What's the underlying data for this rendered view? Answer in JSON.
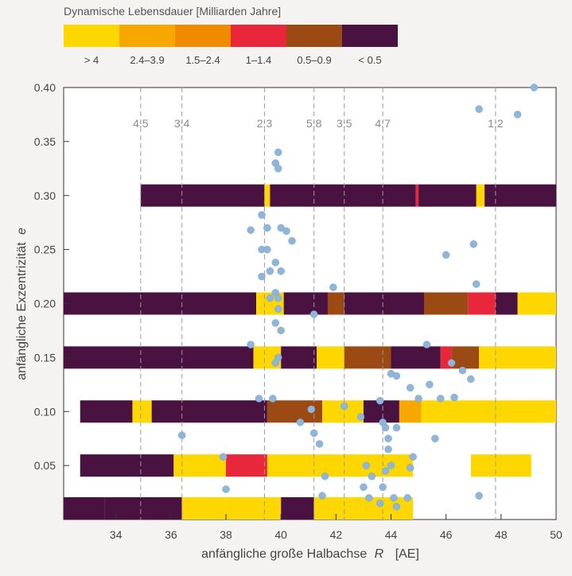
{
  "chart_data": {
    "type": "scatter",
    "legend": {
      "title": "Dynamische Lebensdauer   [Milliarden Jahre]",
      "items": [
        {
          "label": "> 4",
          "color": "#ffd700"
        },
        {
          "label": "2.4–3.9",
          "color": "#f7a800"
        },
        {
          "label": "1.5–2.4",
          "color": "#f08a00"
        },
        {
          "label": "1–1.4",
          "color": "#e8283a"
        },
        {
          "label": "0.5–0.9",
          "color": "#9a4a12"
        },
        {
          "label": "< 0.5",
          "color": "#4a1240"
        }
      ]
    },
    "xlabel_prefix": "anfängliche große Halbachse",
    "xlabel_var": "R",
    "xlabel_unit": "[AE]",
    "ylabel_prefix": "anfängliche Exzentrizität",
    "ylabel_var": "e",
    "xlim": [
      32.1,
      50
    ],
    "ylim": [
      0,
      0.4
    ],
    "xticks": [
      34,
      36,
      38,
      40,
      42,
      44,
      46,
      48,
      50
    ],
    "xtick_labels": [
      "34",
      "36",
      "38",
      "40",
      "42",
      "44",
      "46",
      "48",
      "50"
    ],
    "yticks": [
      0.05,
      0.1,
      0.15,
      0.2,
      0.25,
      0.3,
      0.35,
      0.4
    ],
    "ytick_labels": [
      "0.05",
      "0.10",
      "0.15",
      "0.20",
      "0.25",
      "0.30",
      "0.35",
      "0.40"
    ],
    "resonances": [
      {
        "label": "4:5",
        "a": 34.9
      },
      {
        "label": "3:4",
        "a": 36.4
      },
      {
        "label": "2:3",
        "a": 39.4
      },
      {
        "label": "5:8",
        "a": 41.2
      },
      {
        "label": "3:5",
        "a": 42.3
      },
      {
        "label": "4:7",
        "a": 43.7
      },
      {
        "label": "1:2",
        "a": 47.8
      }
    ],
    "bands": [
      {
        "e": 0.3,
        "segments": [
          [
            34.9,
            39.4,
            "#4a1240"
          ],
          [
            39.4,
            39.6,
            "#ffd700"
          ],
          [
            39.6,
            44.9,
            "#4a1240"
          ],
          [
            44.9,
            45.0,
            "#e8283a"
          ],
          [
            45.0,
            47.1,
            "#4a1240"
          ],
          [
            47.1,
            47.4,
            "#ffd700"
          ],
          [
            47.4,
            50.0,
            "#4a1240"
          ]
        ]
      },
      {
        "e": 0.2,
        "segments": [
          [
            32.1,
            39.1,
            "#4a1240"
          ],
          [
            39.1,
            40.1,
            "#ffd700"
          ],
          [
            40.1,
            41.7,
            "#4a1240"
          ],
          [
            41.7,
            42.3,
            "#9a4a12"
          ],
          [
            42.3,
            45.2,
            "#4a1240"
          ],
          [
            45.2,
            46.8,
            "#9a4a12"
          ],
          [
            46.8,
            47.8,
            "#e8283a"
          ],
          [
            47.8,
            48.6,
            "#4a1240"
          ],
          [
            48.6,
            50.0,
            "#ffd700"
          ]
        ]
      },
      {
        "e": 0.15,
        "segments": [
          [
            32.1,
            39.0,
            "#4a1240"
          ],
          [
            39.0,
            40.0,
            "#ffd700"
          ],
          [
            40.0,
            41.3,
            "#4a1240"
          ],
          [
            41.3,
            42.3,
            "#ffd700"
          ],
          [
            42.3,
            44.0,
            "#9a4a12"
          ],
          [
            44.0,
            45.8,
            "#4a1240"
          ],
          [
            45.8,
            46.2,
            "#e8283a"
          ],
          [
            46.2,
            47.2,
            "#9a4a12"
          ],
          [
            47.2,
            50.0,
            "#ffd700"
          ]
        ]
      },
      {
        "e": 0.1,
        "segments": [
          [
            32.7,
            34.6,
            "#4a1240"
          ],
          [
            34.6,
            35.3,
            "#ffd700"
          ],
          [
            35.3,
            39.5,
            "#4a1240"
          ],
          [
            39.5,
            41.5,
            "#9a4a12"
          ],
          [
            41.5,
            43.0,
            "#ffd700"
          ],
          [
            43.0,
            44.3,
            "#4a1240"
          ],
          [
            44.3,
            45.1,
            "#f7a800"
          ],
          [
            45.1,
            50.0,
            "#ffd700"
          ]
        ]
      },
      {
        "e": 0.05,
        "segments": [
          [
            32.7,
            36.1,
            "#4a1240"
          ],
          [
            36.1,
            38.0,
            "#ffd700"
          ],
          [
            38.0,
            39.5,
            "#e8283a"
          ],
          [
            39.5,
            41.5,
            "#ffd700"
          ],
          [
            41.5,
            44.8,
            "#ffd700"
          ],
          [
            46.9,
            49.1,
            "#ffd700"
          ]
        ]
      },
      {
        "e": 0.0,
        "segments": [
          [
            32.1,
            33.6,
            "#4a1240"
          ],
          [
            33.6,
            36.4,
            "#4a1240"
          ],
          [
            36.4,
            38.0,
            "#ffd700"
          ],
          [
            38.0,
            40.0,
            "#ffd700"
          ],
          [
            40.0,
            41.2,
            "#4a1240"
          ],
          [
            41.2,
            43.0,
            "#ffd700"
          ],
          [
            43.0,
            44.8,
            "#ffd700"
          ]
        ]
      }
    ],
    "points": [
      [
        39.9,
        0.34
      ],
      [
        39.8,
        0.33
      ],
      [
        39.9,
        0.325
      ],
      [
        39.3,
        0.282
      ],
      [
        38.9,
        0.268
      ],
      [
        40.0,
        0.27
      ],
      [
        39.5,
        0.27
      ],
      [
        40.2,
        0.267
      ],
      [
        40.4,
        0.258
      ],
      [
        39.3,
        0.25
      ],
      [
        39.5,
        0.25
      ],
      [
        39.6,
        0.23
      ],
      [
        39.8,
        0.238
      ],
      [
        40.0,
        0.23
      ],
      [
        39.3,
        0.225
      ],
      [
        39.8,
        0.21
      ],
      [
        39.9,
        0.205
      ],
      [
        39.6,
        0.205
      ],
      [
        39.9,
        0.195
      ],
      [
        41.9,
        0.215
      ],
      [
        41.2,
        0.19
      ],
      [
        39.8,
        0.182
      ],
      [
        40.0,
        0.175
      ],
      [
        38.9,
        0.162
      ],
      [
        39.9,
        0.15
      ],
      [
        39.8,
        0.145
      ],
      [
        39.2,
        0.112
      ],
      [
        39.7,
        0.112
      ],
      [
        40.7,
        0.09
      ],
      [
        41.1,
        0.102
      ],
      [
        41.2,
        0.08
      ],
      [
        41.4,
        0.07
      ],
      [
        42.3,
        0.105
      ],
      [
        36.4,
        0.078
      ],
      [
        37.9,
        0.058
      ],
      [
        38.0,
        0.028
      ],
      [
        41.6,
        0.04
      ],
      [
        41.5,
        0.022
      ],
      [
        42.9,
        0.095
      ],
      [
        43.1,
        0.05
      ],
      [
        43.3,
        0.04
      ],
      [
        43.0,
        0.03
      ],
      [
        43.2,
        0.02
      ],
      [
        43.6,
        0.015
      ],
      [
        43.7,
        0.03
      ],
      [
        43.8,
        0.045
      ],
      [
        43.9,
        0.065
      ],
      [
        44.0,
        0.05
      ],
      [
        44.1,
        0.02
      ],
      [
        44.2,
        0.012
      ],
      [
        43.6,
        0.11
      ],
      [
        43.7,
        0.09
      ],
      [
        43.8,
        0.085
      ],
      [
        43.9,
        0.075
      ],
      [
        44.2,
        0.085
      ],
      [
        44.6,
        0.02
      ],
      [
        44.7,
        0.048
      ],
      [
        44.8,
        0.058
      ],
      [
        44.0,
        0.135
      ],
      [
        44.2,
        0.133
      ],
      [
        44.7,
        0.122
      ],
      [
        45.0,
        0.112
      ],
      [
        45.3,
        0.162
      ],
      [
        45.4,
        0.125
      ],
      [
        45.6,
        0.075
      ],
      [
        45.8,
        0.112
      ],
      [
        46.2,
        0.145
      ],
      [
        46.3,
        0.113
      ],
      [
        46.6,
        0.138
      ],
      [
        46.9,
        0.13
      ],
      [
        46.0,
        0.245
      ],
      [
        47.0,
        0.255
      ],
      [
        47.1,
        0.218
      ],
      [
        47.2,
        0.38
      ],
      [
        48.6,
        0.375
      ],
      [
        49.2,
        0.4
      ],
      [
        47.2,
        0.022
      ]
    ]
  }
}
